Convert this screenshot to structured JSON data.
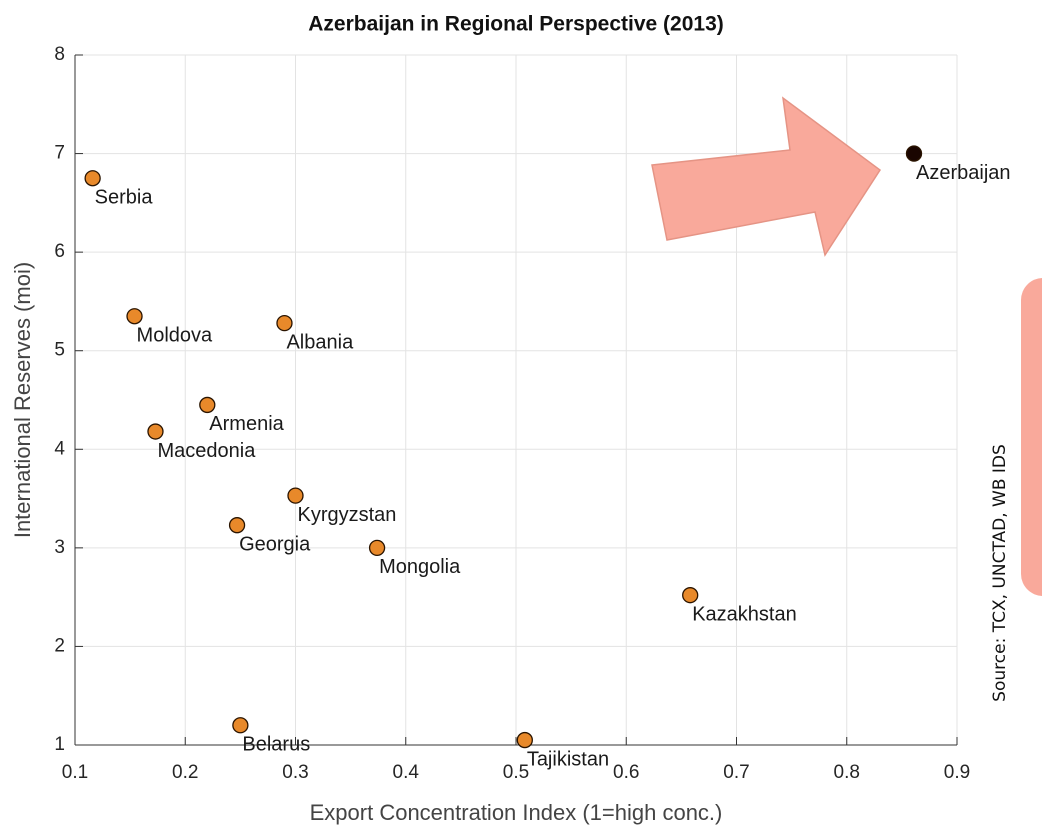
{
  "chart_data": {
    "type": "scatter",
    "title": "Azerbaijan in Regional Perspective (2013)",
    "x_label": "Export Concentration Index (1=high conc.)",
    "y_label": "International Reserves (moi)",
    "source": "Source: TCX, UNCTAD, WB IDS",
    "labels": [
      "Serbia",
      "Moldova",
      "Albania",
      "Armenia",
      "Macedonia",
      "Kyrgyzstan",
      "Georgia",
      "Mongolia",
      "Kazakhstan",
      "Belarus",
      "Tajikistan",
      "Azerbaijan"
    ],
    "x": [
      0.116,
      0.154,
      0.29,
      0.22,
      0.173,
      0.3,
      0.247,
      0.374,
      0.658,
      0.25,
      0.508,
      0.861
    ],
    "y": [
      6.75,
      5.35,
      5.28,
      4.45,
      4.18,
      3.53,
      3.23,
      3.0,
      2.52,
      1.2,
      1.05,
      7.0
    ],
    "point_colors": [
      "#e8892a",
      "#e8892a",
      "#e8892a",
      "#e8892a",
      "#e8892a",
      "#e8892a",
      "#e8892a",
      "#e8892a",
      "#e8892a",
      "#e8892a",
      "#e8892a",
      "#1a0500"
    ],
    "xlim": [
      0.1,
      0.9
    ],
    "xticks": [
      0.1,
      0.2,
      0.3,
      0.4,
      0.5,
      0.6,
      0.7,
      0.8,
      0.9
    ],
    "ylim": [
      1,
      8
    ],
    "yticks": [
      1,
      2,
      3,
      4,
      5,
      6,
      7,
      8
    ],
    "grid": true
  }
}
